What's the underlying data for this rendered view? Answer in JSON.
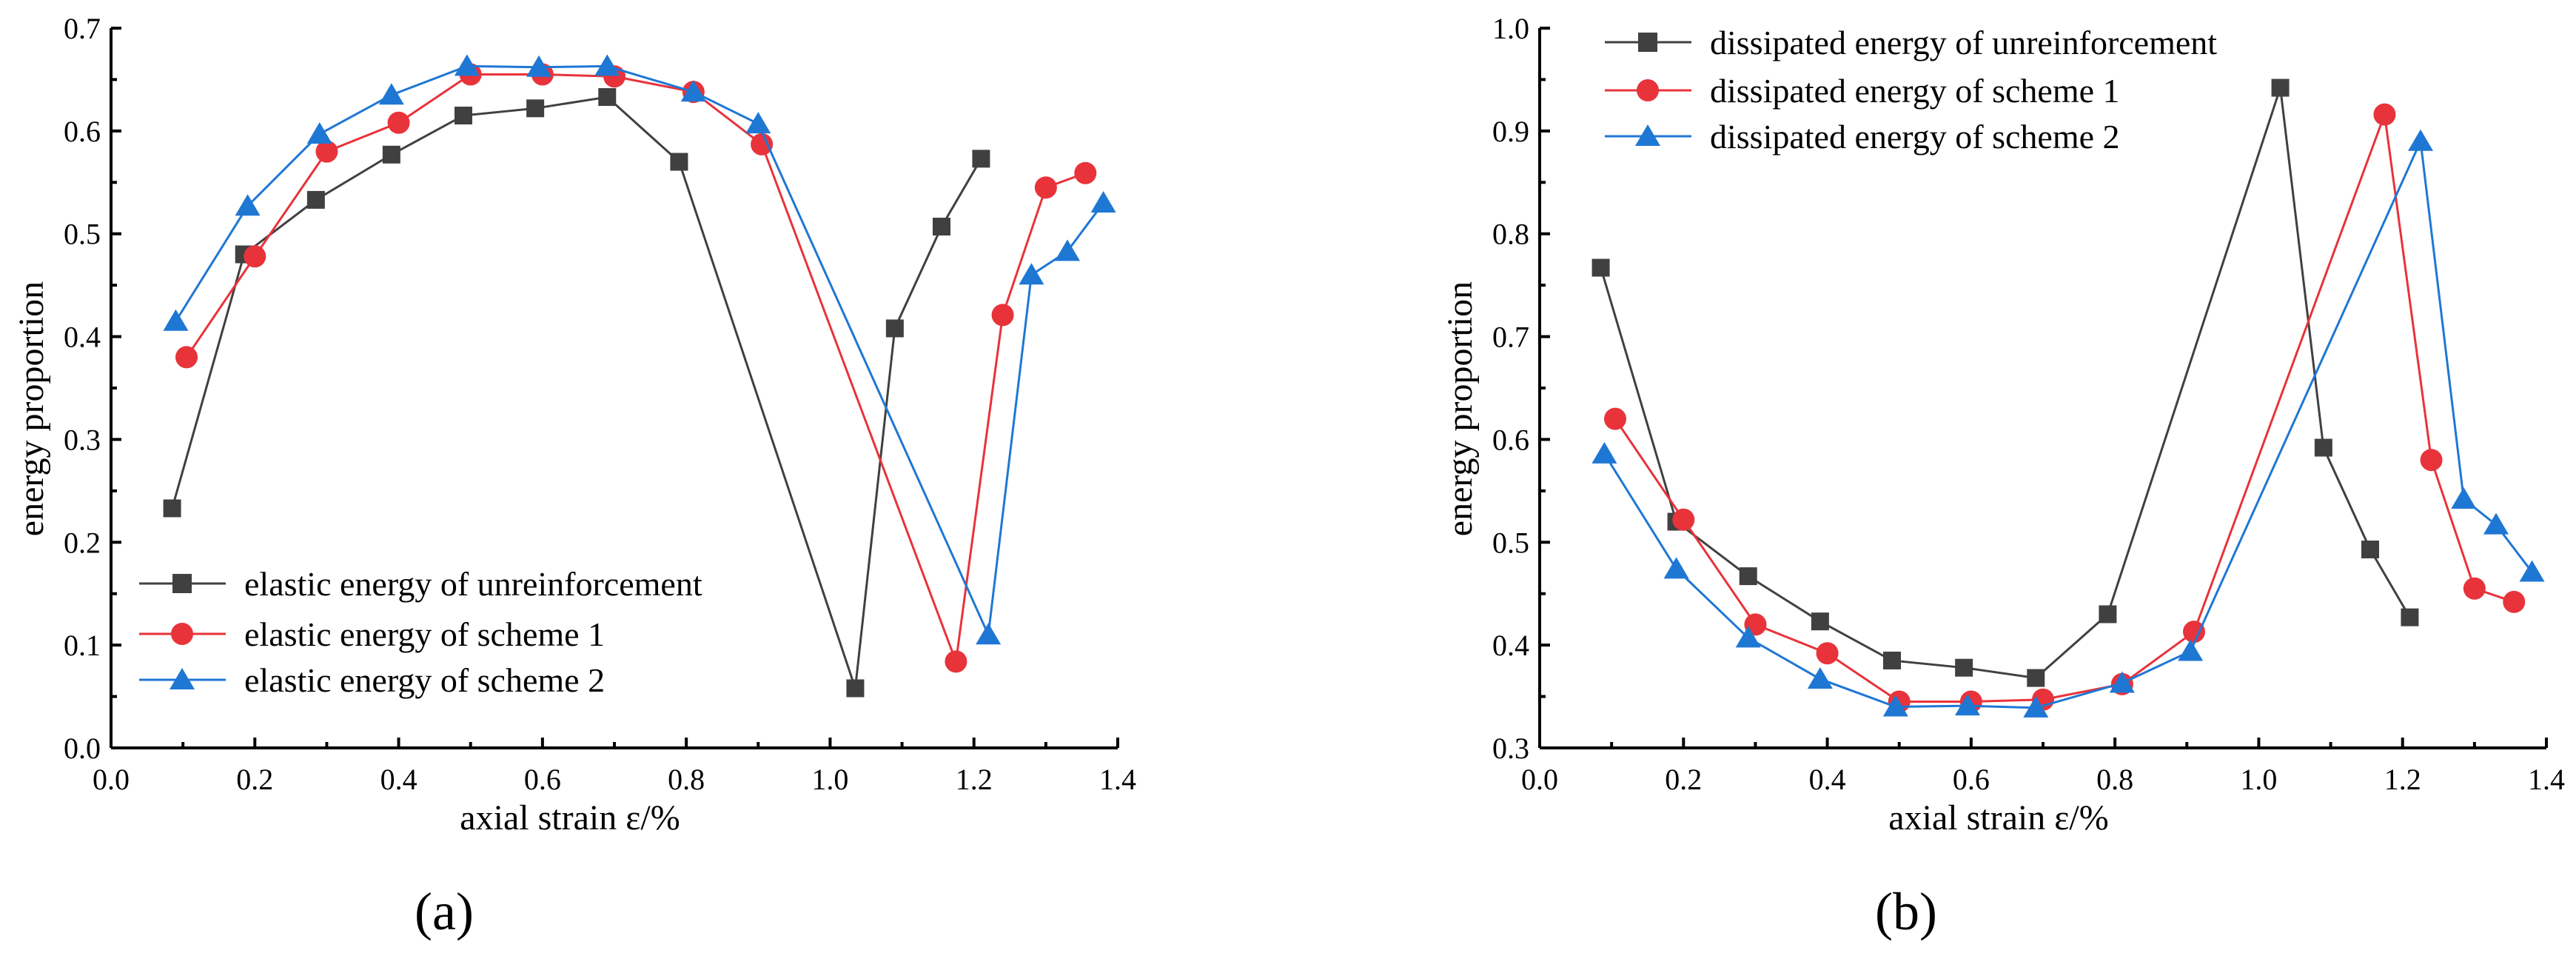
{
  "chart_data": [
    {
      "type": "line",
      "panel_label": "(a)",
      "xlabel": "axial strain  ε/%",
      "ylabel": "energy proportion",
      "xlim": [
        0.0,
        1.4
      ],
      "ylim": [
        0.0,
        0.7
      ],
      "xticks": [
        "0.0",
        "0.2",
        "0.4",
        "0.6",
        "0.8",
        "1.0",
        "1.2",
        "1.4"
      ],
      "yticks": [
        "0.0",
        "0.1",
        "0.2",
        "0.3",
        "0.4",
        "0.5",
        "0.6",
        "0.7"
      ],
      "legend_position": "bottom-center",
      "series": [
        {
          "name": "elastic energy of unreinforcement",
          "color": "#404040",
          "marker": "square",
          "x": [
            0.085,
            0.185,
            0.285,
            0.39,
            0.49,
            0.59,
            0.69,
            0.79,
            1.035,
            1.09,
            1.155,
            1.21
          ],
          "y": [
            0.233,
            0.48,
            0.533,
            0.577,
            0.615,
            0.622,
            0.633,
            0.57,
            0.058,
            0.408,
            0.507,
            0.573
          ]
        },
        {
          "name": "elastic energy of scheme 1",
          "color": "#e8333b",
          "marker": "circle",
          "x": [
            0.105,
            0.2,
            0.3,
            0.4,
            0.5,
            0.6,
            0.7,
            0.81,
            0.905,
            1.175,
            1.24,
            1.3,
            1.355
          ],
          "y": [
            0.38,
            0.478,
            0.58,
            0.608,
            0.655,
            0.655,
            0.653,
            0.638,
            0.587,
            0.084,
            0.421,
            0.545,
            0.559
          ]
        },
        {
          "name": "elastic energy of scheme 2",
          "color": "#1f77d4",
          "marker": "triangle",
          "x": [
            0.09,
            0.19,
            0.29,
            0.39,
            0.495,
            0.595,
            0.69,
            0.81,
            0.9,
            1.22,
            1.28,
            1.33,
            1.38
          ],
          "y": [
            0.415,
            0.527,
            0.597,
            0.635,
            0.663,
            0.662,
            0.663,
            0.638,
            0.607,
            0.11,
            0.46,
            0.483,
            0.53
          ]
        }
      ]
    },
    {
      "type": "line",
      "panel_label": "(b)",
      "xlabel": "axial strain  ε/%",
      "ylabel": "energy proportion",
      "xlim": [
        0.0,
        1.4
      ],
      "ylim": [
        0.3,
        1.0
      ],
      "xticks": [
        "0.0",
        "0.2",
        "0.4",
        "0.6",
        "0.8",
        "1.0",
        "1.2",
        "1.4"
      ],
      "yticks": [
        "0.3",
        "0.4",
        "0.5",
        "0.6",
        "0.7",
        "0.8",
        "0.9",
        "1.0"
      ],
      "legend_position": "top-left",
      "series": [
        {
          "name": "dissipated energy of unreinforcement",
          "color": "#404040",
          "marker": "square",
          "x": [
            0.085,
            0.19,
            0.29,
            0.39,
            0.49,
            0.59,
            0.69,
            0.79,
            1.03,
            1.09,
            1.155,
            1.21
          ],
          "y": [
            0.767,
            0.52,
            0.467,
            0.423,
            0.385,
            0.378,
            0.368,
            0.43,
            0.942,
            0.592,
            0.493,
            0.427
          ]
        },
        {
          "name": "dissipated energy of scheme 1",
          "color": "#e8333b",
          "marker": "circle",
          "x": [
            0.105,
            0.2,
            0.3,
            0.4,
            0.5,
            0.6,
            0.7,
            0.81,
            0.91,
            1.175,
            1.24,
            1.3,
            1.355
          ],
          "y": [
            0.62,
            0.522,
            0.42,
            0.392,
            0.345,
            0.345,
            0.347,
            0.362,
            0.413,
            0.916,
            0.58,
            0.455,
            0.442
          ]
        },
        {
          "name": "dissipated energy of scheme 2",
          "color": "#1f77d4",
          "marker": "triangle",
          "x": [
            0.09,
            0.19,
            0.29,
            0.39,
            0.495,
            0.595,
            0.69,
            0.81,
            0.905,
            1.225,
            1.285,
            1.33,
            1.38
          ],
          "y": [
            0.586,
            0.474,
            0.407,
            0.367,
            0.34,
            0.341,
            0.339,
            0.363,
            0.394,
            0.89,
            0.542,
            0.517,
            0.471
          ]
        }
      ]
    }
  ]
}
